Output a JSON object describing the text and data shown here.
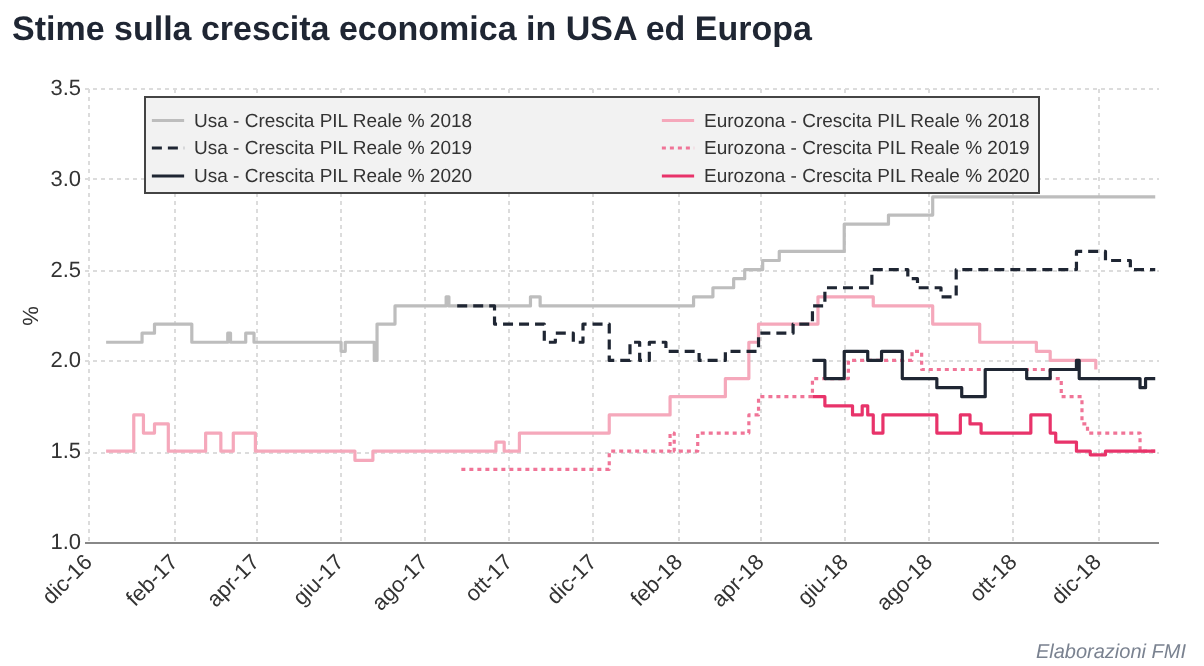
{
  "chart_data": {
    "type": "step",
    "title": "Stime sulla crescita economica in USA ed Europa",
    "ylabel": "%",
    "annotations": [
      "Elaborazioni FMI"
    ],
    "xlim": [
      "2016-11-28",
      "2019-01-14"
    ],
    "xticks": [
      {
        "value": "2016-12-01",
        "label": "dic-16"
      },
      {
        "value": "2017-02-01",
        "label": "feb-17"
      },
      {
        "value": "2017-04-01",
        "label": "apr-17"
      },
      {
        "value": "2017-06-01",
        "label": "giu-17"
      },
      {
        "value": "2017-08-01",
        "label": "ago-17"
      },
      {
        "value": "2017-10-01",
        "label": "ott-17"
      },
      {
        "value": "2017-12-01",
        "label": "dic-17"
      },
      {
        "value": "2018-02-01",
        "label": "feb-18"
      },
      {
        "value": "2018-04-01",
        "label": "apr-18"
      },
      {
        "value": "2018-06-01",
        "label": "giu-18"
      },
      {
        "value": "2018-08-01",
        "label": "ago-18"
      },
      {
        "value": "2018-10-01",
        "label": "ott-18"
      },
      {
        "value": "2018-12-01",
        "label": "dic-18"
      }
    ],
    "ylim": [
      1,
      3.5
    ],
    "yticks": [
      {
        "value": 1,
        "label": "1.0"
      },
      {
        "value": 1.5,
        "label": "1.5"
      },
      {
        "value": 2,
        "label": "2.0"
      },
      {
        "value": 2.5,
        "label": "2.5"
      },
      {
        "value": 3,
        "label": "3.0"
      },
      {
        "value": 3.5,
        "label": "3.5"
      }
    ],
    "grid": true,
    "legend": "top",
    "series": [
      {
        "name": "Usa - Crescita PIL Reale % 2018",
        "color": "#bdbdbd",
        "line_style": "solid",
        "x": [
          "2016-12-14",
          "2017-01-09",
          "2017-01-18",
          "2017-02-14",
          "2017-03-12",
          "2017-03-14",
          "2017-03-25",
          "2017-03-31",
          "2017-06-02",
          "2017-06-05",
          "2017-06-26",
          "2017-06-28",
          "2017-07-11",
          "2017-08-17",
          "2017-08-19",
          "2017-10-17",
          "2017-10-24",
          "2018-02-12",
          "2018-02-26",
          "2018-03-13",
          "2018-03-21",
          "2018-04-03",
          "2018-04-15",
          "2018-06-01",
          "2018-07-03",
          "2018-08-04",
          "2019-01-12"
        ],
        "values": [
          2.1,
          2.15,
          2.2,
          2.1,
          2.15,
          2.1,
          2.15,
          2.1,
          2.05,
          2.1,
          2.0,
          2.2,
          2.3,
          2.35,
          2.3,
          2.35,
          2.3,
          2.35,
          2.4,
          2.45,
          2.5,
          2.55,
          2.6,
          2.75,
          2.8,
          2.9,
          2.9
        ]
      },
      {
        "name": "Eurozona - Crescita PIL Reale % 2018",
        "color": "#f5a8bb",
        "line_style": "solid",
        "x": [
          "2016-12-14",
          "2017-01-03",
          "2017-01-10",
          "2017-01-18",
          "2017-01-28",
          "2017-02-24",
          "2017-03-07",
          "2017-03-16",
          "2017-04-01",
          "2017-06-12",
          "2017-06-25",
          "2017-09-22",
          "2017-09-28",
          "2017-10-09",
          "2017-12-13",
          "2018-01-26",
          "2018-03-07",
          "2018-03-24",
          "2018-03-31",
          "2018-05-13",
          "2018-06-22",
          "2018-08-04",
          "2018-09-07",
          "2018-10-18",
          "2018-10-28",
          "2018-11-30"
        ],
        "values": [
          1.5,
          1.7,
          1.6,
          1.65,
          1.5,
          1.6,
          1.5,
          1.6,
          1.5,
          1.45,
          1.5,
          1.55,
          1.5,
          1.6,
          1.7,
          1.8,
          1.9,
          2.1,
          2.2,
          2.35,
          2.3,
          2.2,
          2.1,
          2.05,
          2.0,
          1.95
        ]
      },
      {
        "name": "Usa - Crescita PIL Reale % 2019",
        "color": "#1f2633",
        "line_style": "dashed",
        "x": [
          "2017-08-25",
          "2017-09-21",
          "2017-10-27",
          "2017-11-04",
          "2017-11-17",
          "2017-11-24",
          "2017-12-13",
          "2017-12-28",
          "2018-01-04",
          "2018-01-11",
          "2018-01-23",
          "2018-02-16",
          "2018-03-07",
          "2018-03-31",
          "2018-04-25",
          "2018-05-09",
          "2018-05-18",
          "2018-06-21",
          "2018-07-17",
          "2018-07-24",
          "2018-08-10",
          "2018-08-21",
          "2018-11-16",
          "2018-12-07",
          "2018-12-25",
          "2019-01-12"
        ],
        "values": [
          2.3,
          2.2,
          2.1,
          2.15,
          2.1,
          2.2,
          2.0,
          2.1,
          2.0,
          2.1,
          2.05,
          2.0,
          2.05,
          2.15,
          2.2,
          2.3,
          2.4,
          2.5,
          2.45,
          2.4,
          2.35,
          2.5,
          2.6,
          2.55,
          2.5,
          2.5
        ]
      },
      {
        "name": "Eurozona - Crescita PIL Reale % 2019",
        "color": "#f07497",
        "line_style": "dotted",
        "x": [
          "2017-08-28",
          "2017-12-13",
          "2018-01-26",
          "2018-01-29",
          "2018-02-15",
          "2018-03-24",
          "2018-03-31",
          "2018-05-09",
          "2018-06-04",
          "2018-07-20",
          "2018-07-27",
          "2018-10-28",
          "2018-11-05",
          "2018-11-20",
          "2018-11-24",
          "2019-01-01",
          "2019-01-12"
        ],
        "values": [
          1.4,
          1.5,
          1.6,
          1.5,
          1.6,
          1.7,
          1.8,
          1.9,
          2.0,
          2.05,
          1.95,
          1.9,
          1.8,
          1.65,
          1.6,
          1.5,
          1.5
        ]
      },
      {
        "name": "Usa - Crescita PIL Reale % 2020",
        "color": "#1f2633",
        "line_style": "solid",
        "x": [
          "2018-05-09",
          "2018-05-18",
          "2018-06-01",
          "2018-06-18",
          "2018-06-28",
          "2018-07-13",
          "2018-08-07",
          "2018-08-25",
          "2018-09-11",
          "2018-10-11",
          "2018-10-28",
          "2018-11-16",
          "2018-11-18",
          "2019-01-01",
          "2019-01-05",
          "2019-01-12"
        ],
        "values": [
          2.0,
          1.9,
          2.05,
          2.0,
          2.05,
          1.9,
          1.85,
          1.8,
          1.95,
          1.9,
          1.95,
          2.0,
          1.9,
          1.85,
          1.9,
          1.9
        ]
      },
      {
        "name": "Eurozona - Crescita PIL Reale % 2020",
        "color": "#e8336a",
        "line_style": "solid",
        "x": [
          "2018-05-09",
          "2018-05-18",
          "2018-06-07",
          "2018-06-14",
          "2018-06-18",
          "2018-06-22",
          "2018-06-29",
          "2018-08-07",
          "2018-08-24",
          "2018-08-31",
          "2018-09-08",
          "2018-10-14",
          "2018-10-28",
          "2018-11-01",
          "2018-11-16",
          "2018-11-26",
          "2018-12-07",
          "2019-01-12"
        ],
        "values": [
          1.8,
          1.75,
          1.7,
          1.75,
          1.7,
          1.6,
          1.7,
          1.6,
          1.7,
          1.65,
          1.6,
          1.7,
          1.6,
          1.55,
          1.5,
          1.48,
          1.5,
          1.5
        ]
      }
    ]
  }
}
